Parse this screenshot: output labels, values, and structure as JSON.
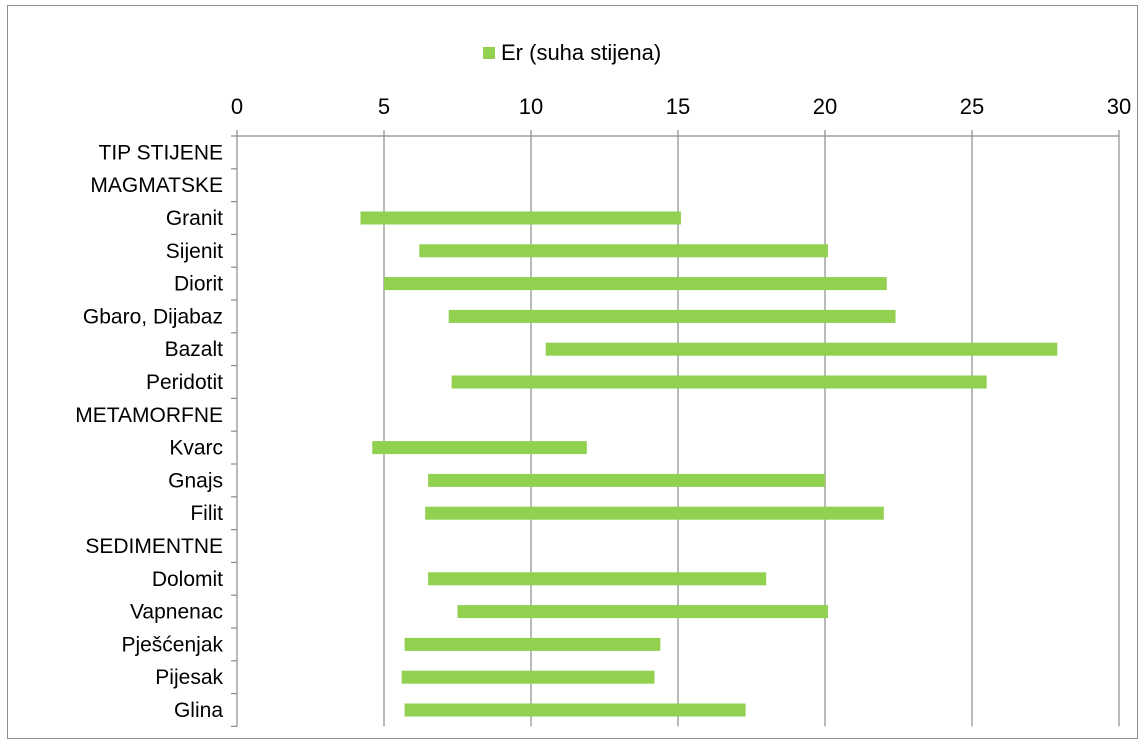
{
  "chart_data": {
    "type": "bar",
    "orientation": "horizontal",
    "title": "",
    "xlabel": "",
    "ylabel": "",
    "legend": {
      "label": "Er (suha stijena)",
      "placement": "top"
    },
    "xlim": [
      0,
      30
    ],
    "xticks": [
      "0",
      "5",
      "10",
      "15",
      "20",
      "25",
      "30"
    ],
    "grid": true,
    "categories": [
      "TIP STIJENE",
      "MAGMATSKE",
      "Granit",
      "Sijenit",
      "Diorit",
      "Gbaro, Dijabaz",
      "Bazalt",
      "Peridotit",
      "METAMORFNE",
      "Kvarc",
      "Gnajs",
      "Filit",
      "SEDIMENTNE",
      "Dolomit",
      "Vapnenac",
      "Pješćenjak",
      "Pijesak",
      "Glina"
    ],
    "series": [
      {
        "name": "Er (suha stijena)",
        "color": "#92d050",
        "ranges": [
          null,
          null,
          [
            4.2,
            15.1
          ],
          [
            6.2,
            20.1
          ],
          [
            5.0,
            22.1
          ],
          [
            7.2,
            22.4
          ],
          [
            10.5,
            27.9
          ],
          [
            7.3,
            25.5
          ],
          null,
          [
            4.6,
            11.9
          ],
          [
            6.5,
            20.0
          ],
          [
            6.4,
            22.0
          ],
          null,
          [
            6.5,
            18.0
          ],
          [
            7.5,
            20.1
          ],
          [
            5.7,
            14.4
          ],
          [
            5.6,
            14.2
          ],
          [
            5.7,
            17.3
          ]
        ]
      }
    ]
  }
}
